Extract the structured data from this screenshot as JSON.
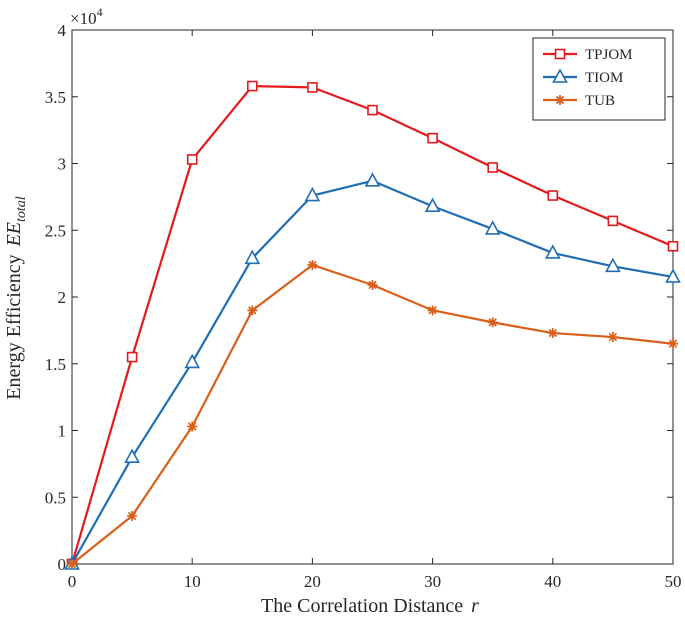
{
  "chart_data": {
    "type": "line",
    "title": "",
    "xlabel": "The Correlation Distance",
    "xlabel_var": "r",
    "ylabel": "Energy Efficiency",
    "ylabel_var": "EE",
    "ylabel_sub": "total",
    "exponent_base": "×10",
    "exponent_power": "4",
    "xlim": [
      0,
      50
    ],
    "ylim": [
      0,
      4
    ],
    "x_ticks": [
      0,
      10,
      20,
      30,
      40,
      50
    ],
    "x_tick_labels": [
      "0",
      "10",
      "20",
      "30",
      "40",
      "50"
    ],
    "y_ticks": [
      0,
      0.5,
      1,
      1.5,
      2,
      2.5,
      3,
      3.5,
      4
    ],
    "y_tick_labels": [
      "0",
      "0.5",
      "1",
      "1.5",
      "2",
      "2.5",
      "3",
      "3.5",
      "4"
    ],
    "x": [
      0,
      5,
      10,
      15,
      20,
      25,
      30,
      35,
      40,
      45,
      50
    ],
    "legend_position": "top-right",
    "grid": false,
    "series": [
      {
        "name": "TPJOM",
        "color": "#e31a1c",
        "marker": "square",
        "values": [
          0,
          1.55,
          3.03,
          3.58,
          3.57,
          3.4,
          3.19,
          2.97,
          2.76,
          2.57,
          2.38
        ]
      },
      {
        "name": "TIOM",
        "color": "#1f6eb5",
        "marker": "triangle",
        "values": [
          0,
          0.8,
          1.51,
          2.29,
          2.76,
          2.87,
          2.68,
          2.51,
          2.33,
          2.23,
          2.15
        ]
      },
      {
        "name": "TUB",
        "color": "#d95f1a",
        "marker": "asterisk",
        "values": [
          0,
          0.36,
          1.03,
          1.9,
          2.24,
          2.09,
          1.9,
          1.81,
          1.73,
          1.7,
          1.65
        ]
      }
    ]
  }
}
